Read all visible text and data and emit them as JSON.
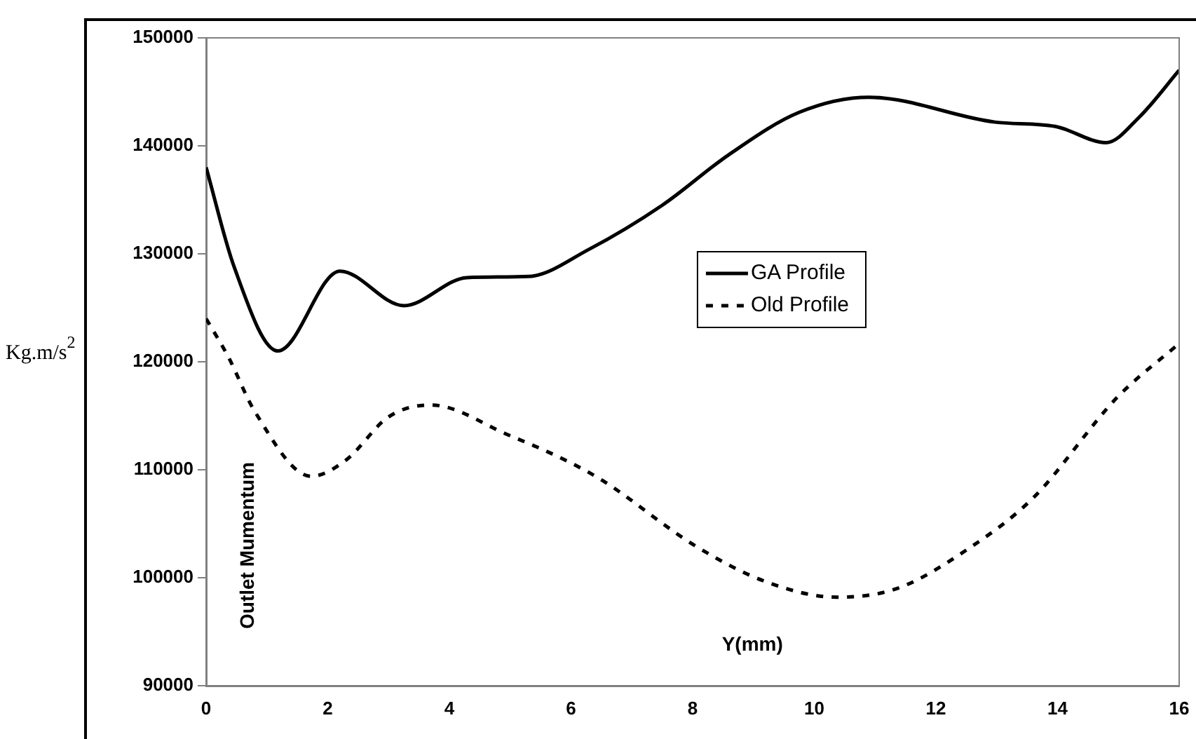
{
  "chart_data": {
    "type": "line",
    "xlabel": "Y(mm)",
    "ylabel": "Outlet Mumentum",
    "annotations": [
      "Kg.m/s$^{2}$"
    ],
    "xlim": [
      0,
      16
    ],
    "xticks": [
      0,
      2,
      4,
      6,
      8,
      10,
      12,
      14,
      16
    ],
    "ylim": [
      90000,
      150000
    ],
    "yticks": [
      90000,
      100000,
      110000,
      120000,
      130000,
      140000,
      150000
    ],
    "grid": false,
    "legend": "center",
    "marker": "none",
    "series": [
      {
        "name": "GA Profile",
        "color": "#000000",
        "line_style": "solid",
        "x": [
          0,
          0.46,
          1.18,
          2.2,
          3.25,
          4.29,
          5.3,
          6.29,
          7.5,
          8.6,
          9.75,
          10.9,
          12.97,
          13.96,
          14.8,
          15.35,
          16
        ],
        "values": [
          138000,
          128800,
          121000,
          128400,
          125200,
          127800,
          127900,
          130400,
          134500,
          139200,
          143100,
          144500,
          142200,
          141800,
          140300,
          142700,
          147000
        ]
      },
      {
        "name": "Old Profile",
        "color": "#000000",
        "line_style": "dashed",
        "x": [
          0,
          0.37,
          0.8,
          1.73,
          2.3,
          3.0,
          3.69,
          4.98,
          5.94,
          6.52,
          8.06,
          9.22,
          10.37,
          11.36,
          12.51,
          13.6,
          14.98,
          16
        ],
        "values": [
          124000,
          120400,
          115400,
          109400,
          110900,
          114900,
          116000,
          113200,
          110800,
          109000,
          102900,
          99600,
          98200,
          99000,
          102600,
          107400,
          116700,
          121700
        ]
      }
    ]
  }
}
